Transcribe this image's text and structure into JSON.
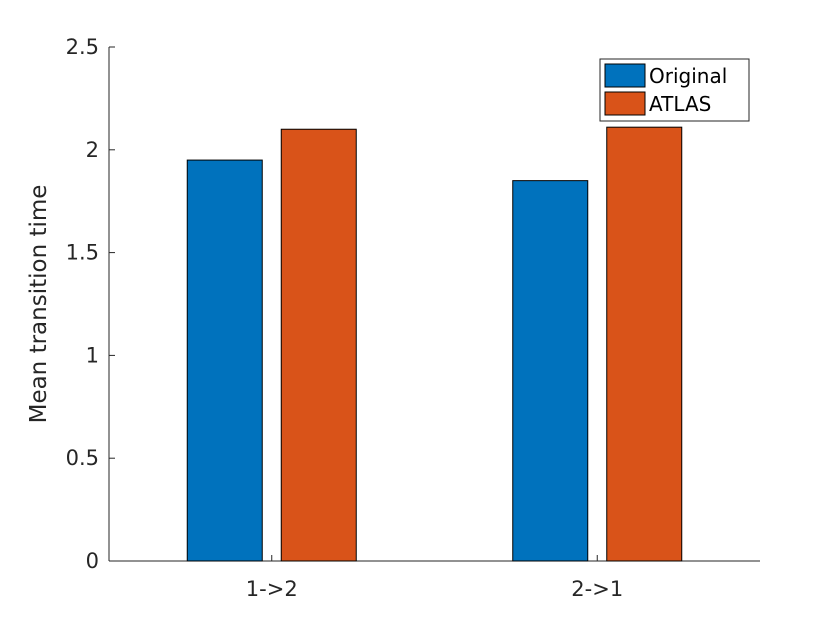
{
  "chart_data": {
    "type": "bar",
    "categories": [
      "1->2",
      "2->1"
    ],
    "series": [
      {
        "name": "Original",
        "values": [
          1.95,
          1.85
        ],
        "color": "#0072BD"
      },
      {
        "name": "ATLAS",
        "values": [
          2.1,
          2.11
        ],
        "color": "#D95319"
      }
    ],
    "title": "",
    "xlabel": "",
    "ylabel": "Mean transition time",
    "ylim": [
      0,
      2.5
    ],
    "yticks": [
      "0",
      "0.5",
      "1",
      "1.5",
      "2",
      "2.5"
    ],
    "grid": false,
    "legend_position": "top-right"
  }
}
